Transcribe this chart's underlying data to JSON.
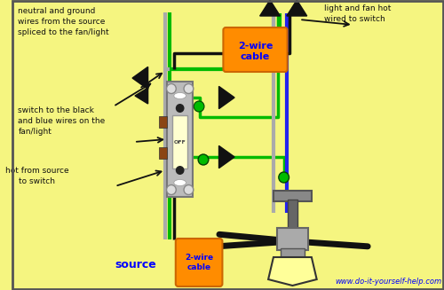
{
  "bg_color": "#f5f580",
  "website": "www.do-it-yourself-help.com",
  "source_label": "source",
  "cable_label": "2-wire\ncable",
  "orange": "#FF8C00",
  "green": "#00BB00",
  "blue": "#2222EE",
  "gray_wire": "#AAAAAA",
  "black_wire": "#111111",
  "ann1": "neutral and ground\nwires from the source\nspliced to the fan/light",
  "ann2": "switch to the black\nand blue wires on the\nfan/light",
  "ann3": "hot from source\nto switch",
  "ann4": "light and fan hot\nwired to switch"
}
